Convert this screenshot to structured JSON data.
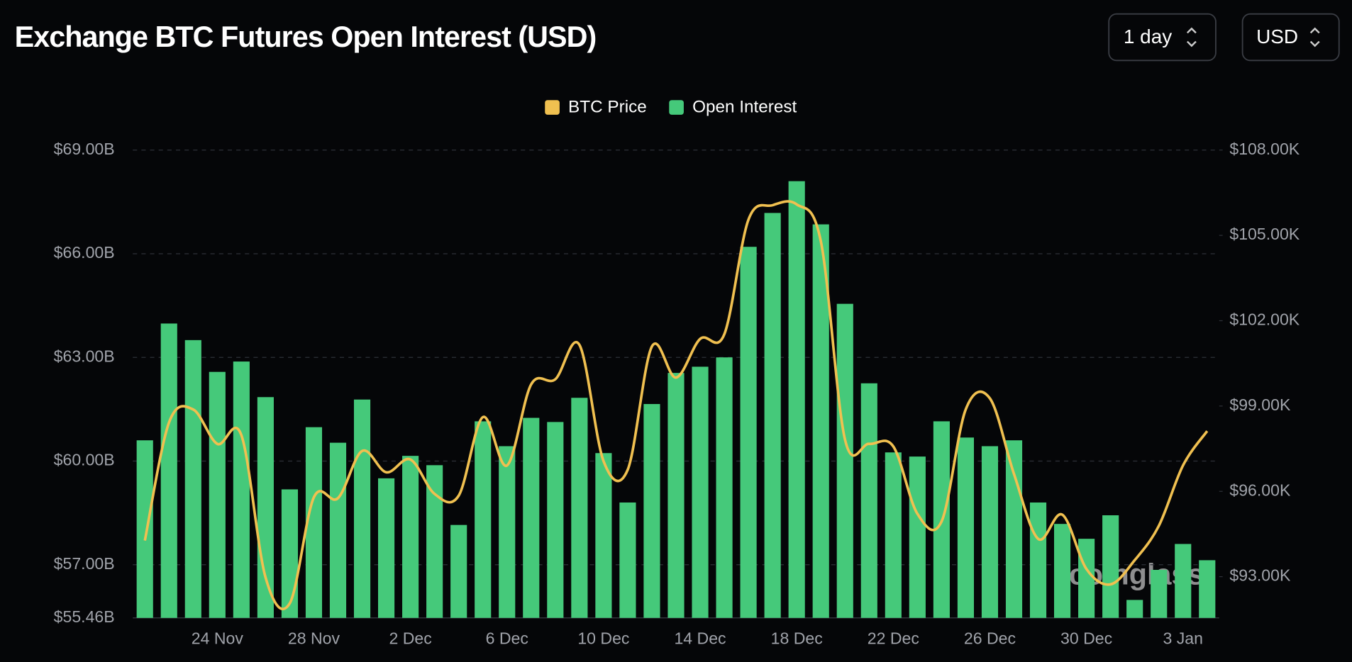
{
  "chart_data": {
    "type": "bar-line",
    "title": "Exchange BTC Futures Open Interest (USD)",
    "controls": [
      "1 day",
      "USD"
    ],
    "watermark": "coinglass",
    "categories": [
      null,
      null,
      null,
      "24 Nov",
      null,
      null,
      null,
      "28 Nov",
      null,
      null,
      null,
      "2 Dec",
      null,
      null,
      null,
      "6 Dec",
      null,
      null,
      null,
      "10 Dec",
      null,
      null,
      null,
      "14 Dec",
      null,
      null,
      null,
      "18 Dec",
      null,
      null,
      null,
      "22 Dec",
      null,
      null,
      null,
      "26 Dec",
      null,
      null,
      null,
      "30 Dec",
      null,
      null,
      null,
      "3 Jan",
      null
    ],
    "series": [
      {
        "name": "BTC Price",
        "color": "#f0c050",
        "axis": "y2",
        "values": [
          94.27,
          98.42,
          98.88,
          97.67,
          97.97,
          92.97,
          92.06,
          95.79,
          95.76,
          97.42,
          96.67,
          97.12,
          95.91,
          95.85,
          98.61,
          96.91,
          99.76,
          99.94,
          101.15,
          97.06,
          96.76,
          101.09,
          100.0,
          101.36,
          101.52,
          105.55,
          106.06,
          106.09,
          104.79,
          97.82,
          97.67,
          97.58,
          95.21,
          94.94,
          98.88,
          99.27,
          96.61,
          94.33,
          95.18,
          93.27,
          92.73,
          93.58,
          94.79,
          96.91,
          98.12
        ]
      },
      {
        "name": "Open Interest",
        "color": "#45c97a",
        "values": [
          60.6,
          63.98,
          63.5,
          62.58,
          62.88,
          61.85,
          59.18,
          60.98,
          60.53,
          61.78,
          59.5,
          60.15,
          59.88,
          58.15,
          61.15,
          60.43,
          61.25,
          61.13,
          61.83,
          60.23,
          58.8,
          61.65,
          62.55,
          62.73,
          63.0,
          66.2,
          67.18,
          68.1,
          66.85,
          64.55,
          62.25,
          60.25,
          60.13,
          61.15,
          60.68,
          60.43,
          60.6,
          58.8,
          58.18,
          57.75,
          58.43,
          55.98,
          56.85,
          57.6,
          57.13
        ]
      }
    ],
    "ylim": [
      55.46,
      69
    ],
    "yticks": [
      {
        "value": 55.46,
        "label": "$55.46B"
      },
      {
        "value": 57,
        "label": "$57.00B"
      },
      {
        "value": 60,
        "label": "$60.00B"
      },
      {
        "value": 63,
        "label": "$63.00B"
      },
      {
        "value": 66,
        "label": "$66.00B"
      },
      {
        "value": 69,
        "label": "$69.00B"
      }
    ],
    "y2lim": [
      91.55,
      108
    ],
    "y2ticks": [
      {
        "value": 93,
        "label": "$93.00K"
      },
      {
        "value": 96,
        "label": "$96.00K"
      },
      {
        "value": 99,
        "label": "$99.00K"
      },
      {
        "value": 102,
        "label": "$102.00K"
      },
      {
        "value": 105,
        "label": "$105.00K"
      },
      {
        "value": 108,
        "label": "$108.00K"
      }
    ],
    "grid": true,
    "legend": "top"
  }
}
